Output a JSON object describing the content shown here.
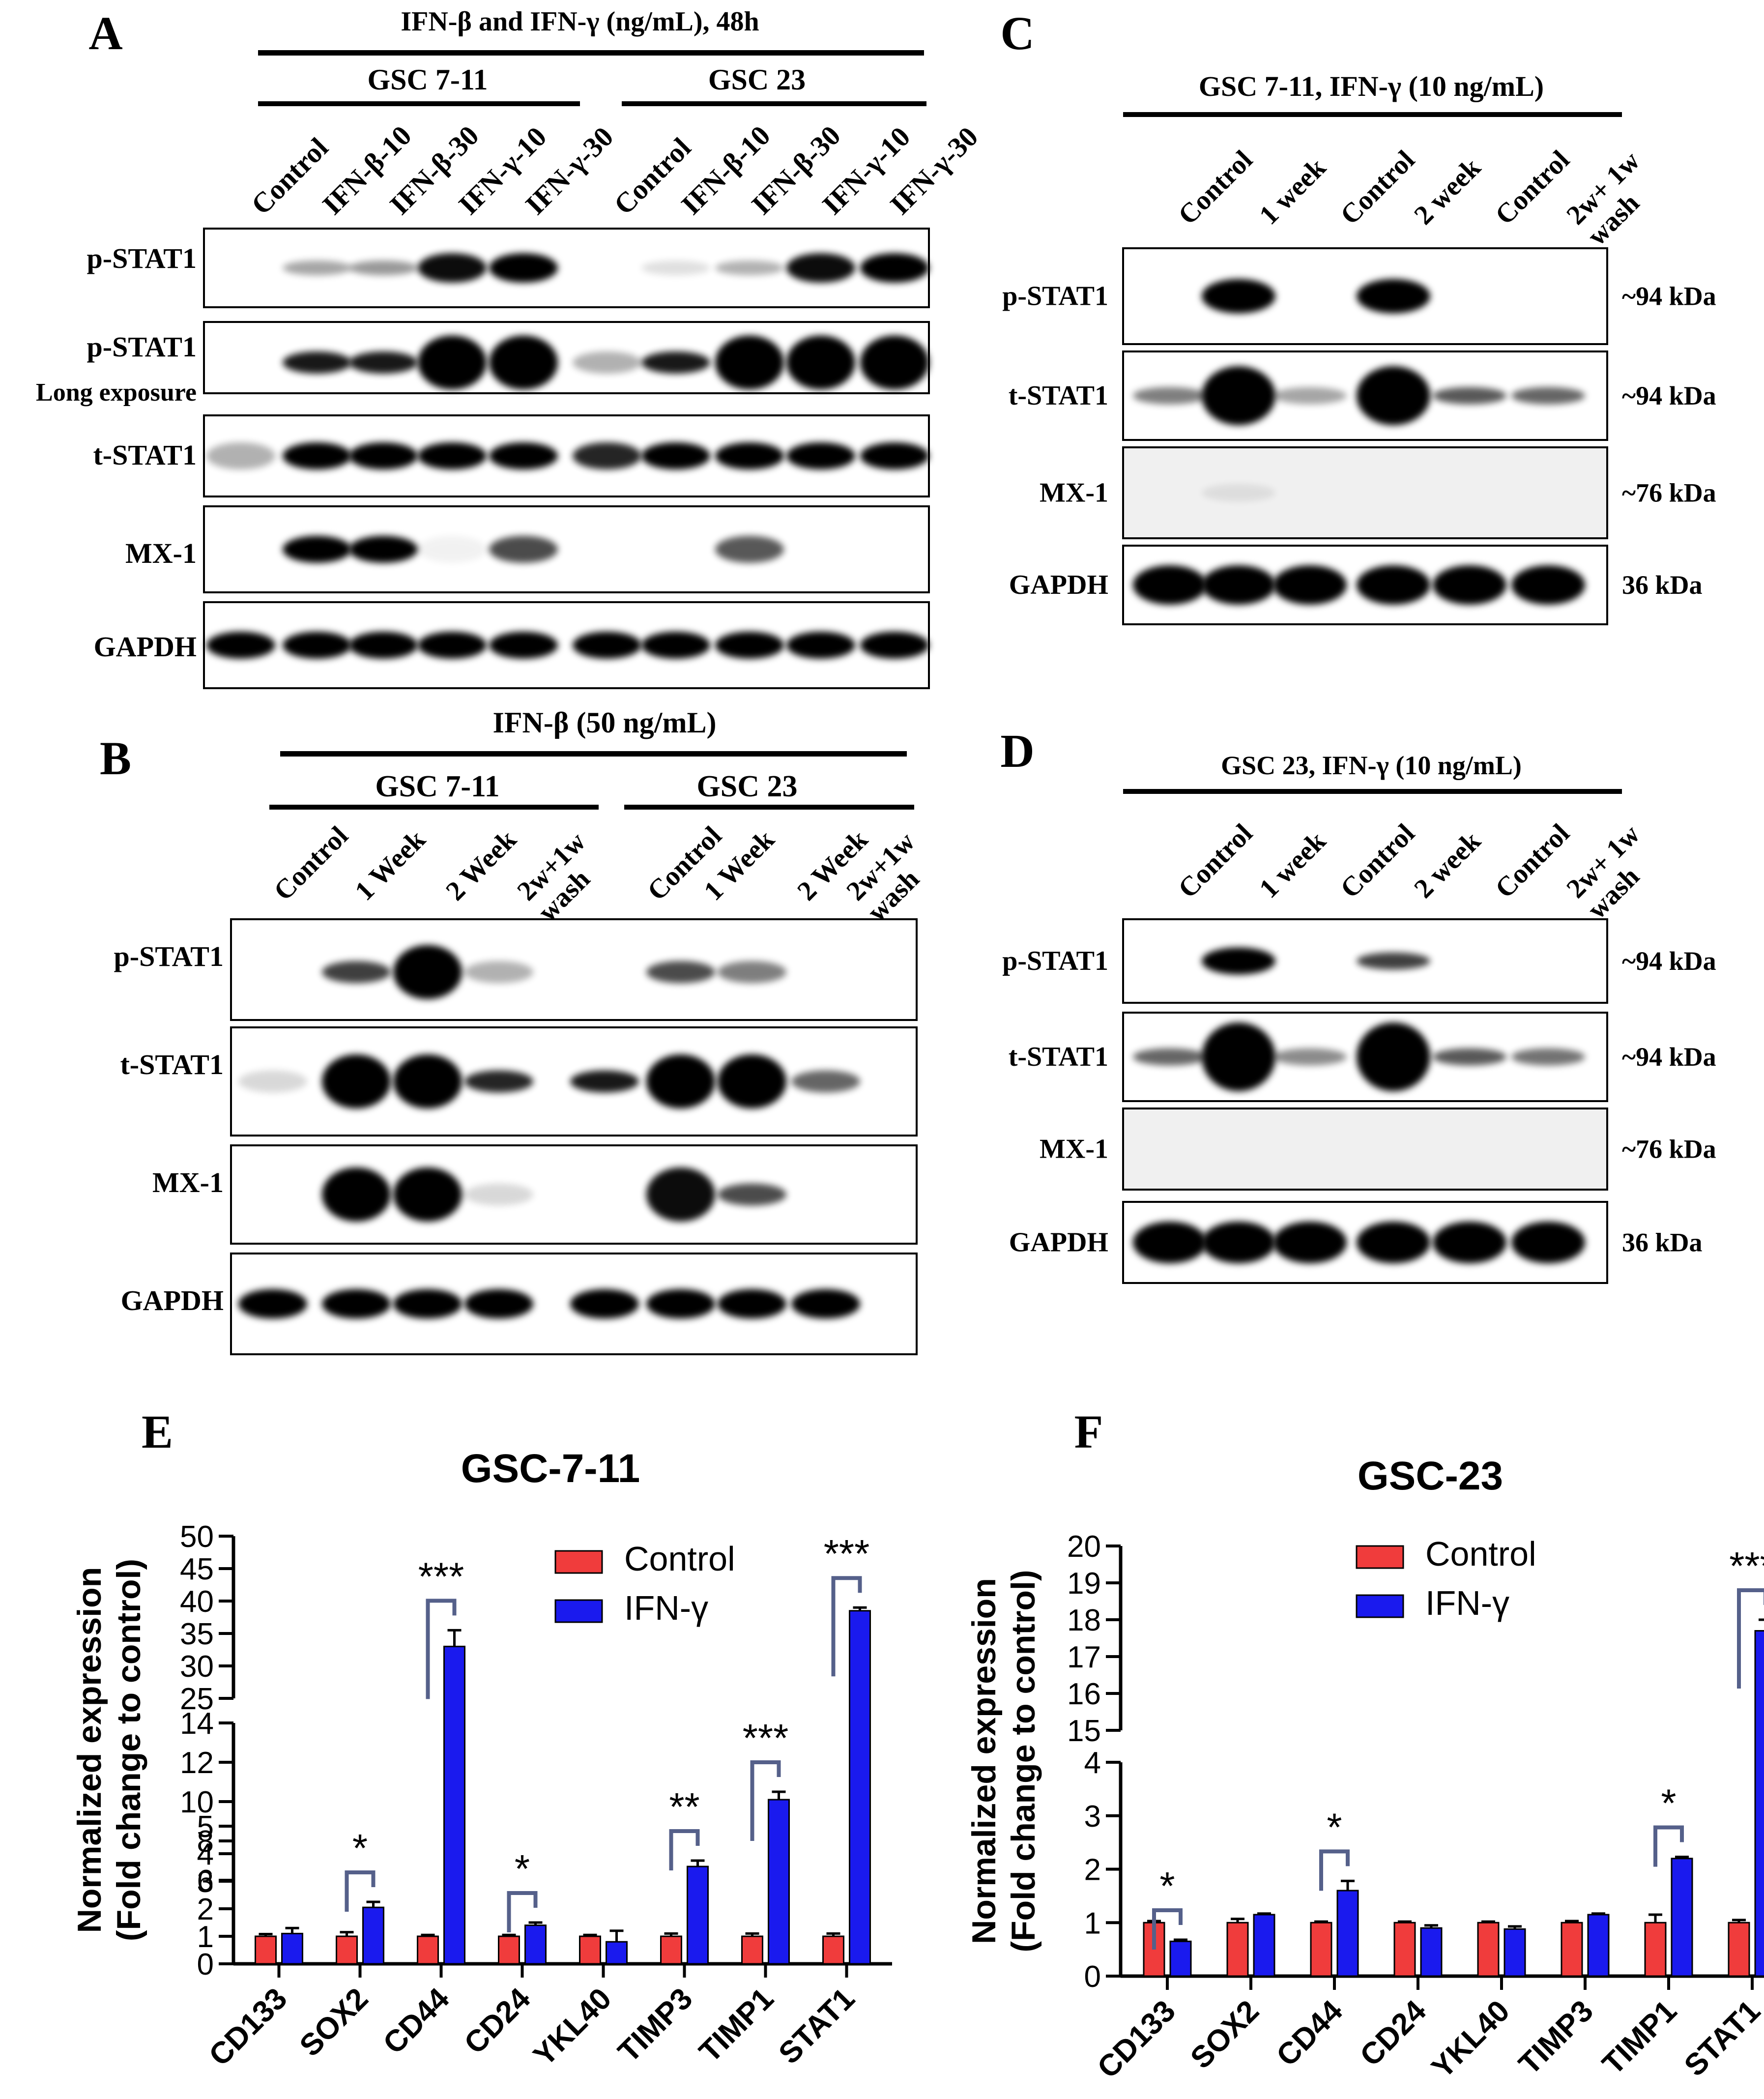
{
  "panels": {
    "A": {
      "letter": "A",
      "title": "IFN-β and IFN-γ (ng/mL), 48h",
      "groups": [
        "GSC 7-11",
        "GSC 23"
      ],
      "lanes": [
        "Control",
        "IFN-β-10",
        "IFN-β-30",
        "IFN-γ-10",
        "IFN-γ-30",
        "Control",
        "IFN-β-10",
        "IFN-β-30",
        "IFN-γ-10",
        "IFN-γ-30"
      ],
      "rows": [
        "p-STAT1",
        "p-STAT1",
        "t-STAT1",
        "MX-1",
        "GAPDH"
      ],
      "row2_sub": "Long exposure"
    },
    "B": {
      "letter": "B",
      "title": "IFN-β (50 ng/mL)",
      "groups": [
        "GSC 7-11",
        "GSC 23"
      ],
      "lanes": [
        [
          "Control"
        ],
        [
          "1 Week"
        ],
        [
          "2 Week"
        ],
        [
          "2w+1w",
          "wash"
        ],
        [
          "Control"
        ],
        [
          "1 Week"
        ],
        [
          "2 Week"
        ],
        [
          "2w+1w",
          "wash"
        ]
      ],
      "rows": [
        "p-STAT1",
        "t-STAT1",
        "MX-1",
        "GAPDH"
      ]
    },
    "C": {
      "letter": "C",
      "title": "GSC 7-11, IFN-γ (10 ng/mL)",
      "lanes": [
        [
          "Control"
        ],
        [
          "1 week"
        ],
        [
          "Control"
        ],
        [
          "2 week"
        ],
        [
          "Control"
        ],
        [
          "2w+ 1w",
          "wash"
        ]
      ],
      "rows": [
        "p-STAT1",
        "t-STAT1",
        "MX-1",
        "GAPDH"
      ],
      "sizes": [
        "~94 kDa",
        "~94 kDa",
        "~76 kDa",
        "36 kDa"
      ]
    },
    "D": {
      "letter": "D",
      "title": "GSC 23, IFN-γ (10 ng/mL)",
      "lanes": [
        [
          "Control"
        ],
        [
          "1 week"
        ],
        [
          "Control"
        ],
        [
          "2 week"
        ],
        [
          "Control"
        ],
        [
          "2w+ 1w",
          "wash"
        ]
      ],
      "rows": [
        "p-STAT1",
        "t-STAT1",
        "MX-1",
        "GAPDH"
      ],
      "sizes": [
        "~94 kDa",
        "~94 kDa",
        "~76 kDa",
        "36 kDa"
      ]
    }
  },
  "chart_data": [
    {
      "panel": "E",
      "type": "bar",
      "title": "GSC-7-11",
      "ylabel": [
        "Normalized expression",
        "(Fold change to control)"
      ],
      "categories": [
        "CD133",
        "SOX2",
        "CD44",
        "CD24",
        "YKL40",
        "TIMP3",
        "TIMP1",
        "STAT1"
      ],
      "series": [
        {
          "name": "Control",
          "color": "#f03c3c",
          "values": [
            1,
            1,
            1,
            1,
            1,
            1,
            1,
            1
          ],
          "errors": [
            0.08,
            0.15,
            0.05,
            0.05,
            0.05,
            0.1,
            0.1,
            0.1
          ]
        },
        {
          "name": "IFN-γ",
          "color": "#1a1aee",
          "values": [
            1.1,
            2.05,
            33,
            1.4,
            0.8,
            6.7,
            10.1,
            38.5
          ],
          "errors": [
            0.2,
            0.2,
            2.5,
            0.1,
            0.4,
            0.3,
            0.4,
            0.5
          ]
        }
      ],
      "broken_axis_segments": [
        {
          "range": [
            0,
            5
          ],
          "ticks": [
            0,
            1,
            2,
            3,
            4,
            5
          ]
        },
        {
          "range": [
            6,
            14
          ],
          "ticks": [
            6,
            8,
            10,
            12,
            14
          ]
        },
        {
          "range": [
            25,
            50
          ],
          "ticks": [
            25,
            30,
            35,
            40,
            45,
            50
          ]
        }
      ],
      "significance": [
        {
          "category": "SOX2",
          "label": "*"
        },
        {
          "category": "CD44",
          "label": "***"
        },
        {
          "category": "CD24",
          "label": "*"
        },
        {
          "category": "TIMP3",
          "label": "**"
        },
        {
          "category": "TIMP1",
          "label": "***"
        },
        {
          "category": "STAT1",
          "label": "***"
        }
      ],
      "legend": "top-right"
    },
    {
      "panel": "F",
      "type": "bar",
      "title": "GSC-23",
      "ylabel": [
        "Normalized expression",
        "(Fold change to control)"
      ],
      "categories": [
        "CD133",
        "SOX2",
        "CD44",
        "CD24",
        "YKL40",
        "TIMP3",
        "TIMP1",
        "STAT1"
      ],
      "series": [
        {
          "name": "Control",
          "color": "#f03c3c",
          "values": [
            1,
            1,
            1,
            1,
            1,
            1,
            1,
            1
          ],
          "errors": [
            0.03,
            0.07,
            0.02,
            0.02,
            0.02,
            0.03,
            0.15,
            0.05
          ]
        },
        {
          "name": "IFN-γ",
          "color": "#1a1aee",
          "values": [
            0.65,
            1.15,
            1.6,
            0.9,
            0.88,
            1.15,
            2.2,
            17.7
          ],
          "errors": [
            0.03,
            0.02,
            0.18,
            0.05,
            0.05,
            0.02,
            0.03,
            0.3
          ]
        }
      ],
      "broken_axis_segments": [
        {
          "range": [
            0,
            4
          ],
          "ticks": [
            0,
            1,
            2,
            3,
            4
          ]
        },
        {
          "range": [
            15,
            20
          ],
          "ticks": [
            15,
            16,
            17,
            18,
            19,
            20
          ]
        }
      ],
      "significance": [
        {
          "category": "CD133",
          "label": "*"
        },
        {
          "category": "CD44",
          "label": "*"
        },
        {
          "category": "TIMP1",
          "label": "*"
        },
        {
          "category": "STAT1",
          "label": "***"
        }
      ],
      "legend": "top-right"
    }
  ],
  "colors": {
    "control": "#f03c3c",
    "ifn": "#1a1aee",
    "bracket": "#55608a"
  }
}
